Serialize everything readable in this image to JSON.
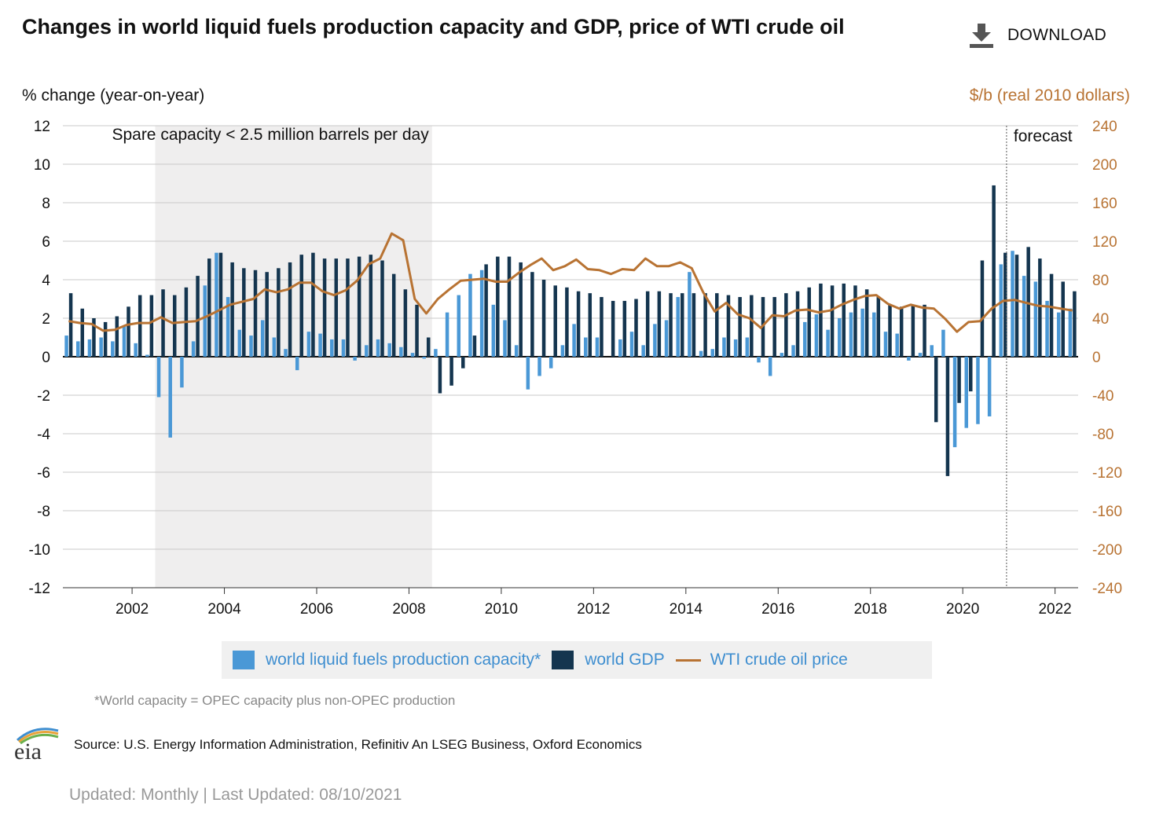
{
  "header": {
    "title": "Changes in world liquid fuels production capacity and GDP, price of WTI crude oil",
    "download_label": "DOWNLOAD"
  },
  "axes": {
    "left_label": "% change (year-on-year)",
    "right_label": "$/b (real 2010 dollars)"
  },
  "annotations": {
    "shaded_region": "Spare capacity < 2.5 million barrels per day",
    "forecast": "forecast"
  },
  "legend": {
    "capacity": "world liquid fuels production capacity*",
    "gdp": "world GDP",
    "price": "WTI crude oil price"
  },
  "footer": {
    "footnote": "*World capacity = OPEC capacity plus non-OPEC production",
    "source": "Source: U.S. Energy Information Administration, Refinitiv An LSEG Business, Oxford Economics",
    "updated": "Updated: Monthly | Last Updated: 08/10/2021",
    "logo_text": "eia"
  },
  "colors": {
    "capacity": "#4a98d6",
    "gdp": "#14354f",
    "price": "#b87333",
    "shade": "#efeeee",
    "grid": "#c8c8c8"
  },
  "chart_data": {
    "type": "bar+line",
    "title": "Changes in world liquid fuels production capacity and GDP, price of WTI crude oil",
    "x_quarter_start": "2001Q1",
    "x_quarter_end": "2022Q4",
    "x_ticks": [
      "2002",
      "2004",
      "2006",
      "2008",
      "2010",
      "2012",
      "2014",
      "2016",
      "2018",
      "2020",
      "2022"
    ],
    "ylim_left": [
      -12,
      12
    ],
    "yticks_left": [
      "12",
      "10",
      "8",
      "6",
      "4",
      "2",
      "0",
      "-2",
      "-4",
      "-6",
      "-8",
      "-10",
      "-12"
    ],
    "ylim_right": [
      -240,
      240
    ],
    "yticks_right": [
      "240",
      "200",
      "160",
      "120",
      "80",
      "40",
      "0",
      "-40",
      "-80",
      "-120",
      "-160",
      "-200",
      "-240"
    ],
    "shaded_range": [
      "2003Q1",
      "2009Q1"
    ],
    "forecast_start": "2021Q3",
    "series": [
      {
        "name": "world liquid fuels production capacity*",
        "axis": "left",
        "type": "bar",
        "values": [
          1.1,
          0.8,
          0.9,
          1.0,
          0.8,
          1.6,
          0.7,
          0.1,
          -2.1,
          -4.2,
          -1.6,
          0.8,
          3.7,
          5.4,
          3.1,
          1.4,
          1.1,
          1.9,
          1.0,
          0.4,
          -0.7,
          1.3,
          1.2,
          0.9,
          0.9,
          -0.2,
          0.6,
          0.9,
          0.7,
          0.5,
          0.2,
          -0.1,
          0.4,
          2.3,
          3.2,
          4.3,
          4.5,
          2.7,
          1.9,
          0.6,
          -1.7,
          -1.0,
          -0.6,
          0.6,
          1.7,
          1.0,
          1.0,
          0.0,
          0.9,
          1.3,
          0.6,
          1.7,
          1.9,
          3.1,
          4.4,
          0.3,
          0.4,
          1.0,
          0.9,
          1.0,
          -0.3,
          -1.0,
          0.2,
          0.6,
          1.8,
          2.2,
          1.4,
          2.0,
          2.3,
          2.5,
          2.3,
          1.3,
          1.2,
          -0.2,
          0.2,
          0.6,
          1.4,
          -4.7,
          -3.7,
          -3.5,
          -3.1,
          4.8,
          5.5,
          4.2,
          3.9,
          2.9,
          2.3,
          2.5
        ]
      },
      {
        "name": "world GDP",
        "axis": "left",
        "type": "bar",
        "values": [
          3.3,
          2.5,
          2.0,
          1.8,
          2.1,
          2.6,
          3.2,
          3.2,
          3.5,
          3.2,
          3.6,
          4.2,
          5.1,
          5.4,
          4.9,
          4.6,
          4.5,
          4.4,
          4.6,
          4.9,
          5.3,
          5.4,
          5.1,
          5.1,
          5.1,
          5.2,
          5.3,
          5.0,
          4.3,
          3.5,
          2.7,
          1.0,
          -1.9,
          -1.5,
          -0.6,
          1.1,
          4.8,
          5.2,
          5.2,
          4.9,
          4.4,
          4.0,
          3.7,
          3.6,
          3.4,
          3.3,
          3.1,
          2.9,
          2.9,
          3.0,
          3.4,
          3.4,
          3.3,
          3.3,
          3.3,
          3.3,
          3.3,
          3.2,
          3.1,
          3.2,
          3.1,
          3.1,
          3.3,
          3.4,
          3.6,
          3.8,
          3.7,
          3.8,
          3.7,
          3.5,
          3.1,
          2.7,
          2.6,
          2.7,
          2.7,
          -3.4,
          -6.2,
          -2.4,
          -1.8,
          5.0,
          8.9,
          5.4,
          5.3,
          5.7,
          5.1,
          4.3,
          3.9,
          3.4
        ]
      },
      {
        "name": "WTI crude oil price",
        "axis": "right",
        "type": "line",
        "values": [
          37,
          35,
          34,
          27,
          28,
          33,
          35,
          35,
          41,
          35,
          36,
          37,
          42,
          48,
          54,
          57,
          60,
          70,
          67,
          70,
          77,
          77,
          68,
          64,
          69,
          79,
          96,
          102,
          128,
          121,
          60,
          45,
          60,
          70,
          79,
          80,
          81,
          78,
          78,
          87,
          95,
          102,
          90,
          94,
          101,
          91,
          90,
          86,
          91,
          90,
          102,
          94,
          94,
          98,
          92,
          67,
          47,
          56,
          44,
          40,
          30,
          43,
          42,
          48,
          49,
          46,
          48,
          54,
          59,
          63,
          64,
          55,
          50,
          54,
          51,
          50,
          39,
          26,
          36,
          37,
          50,
          58,
          59,
          56,
          53,
          52,
          50,
          48
        ]
      }
    ]
  }
}
